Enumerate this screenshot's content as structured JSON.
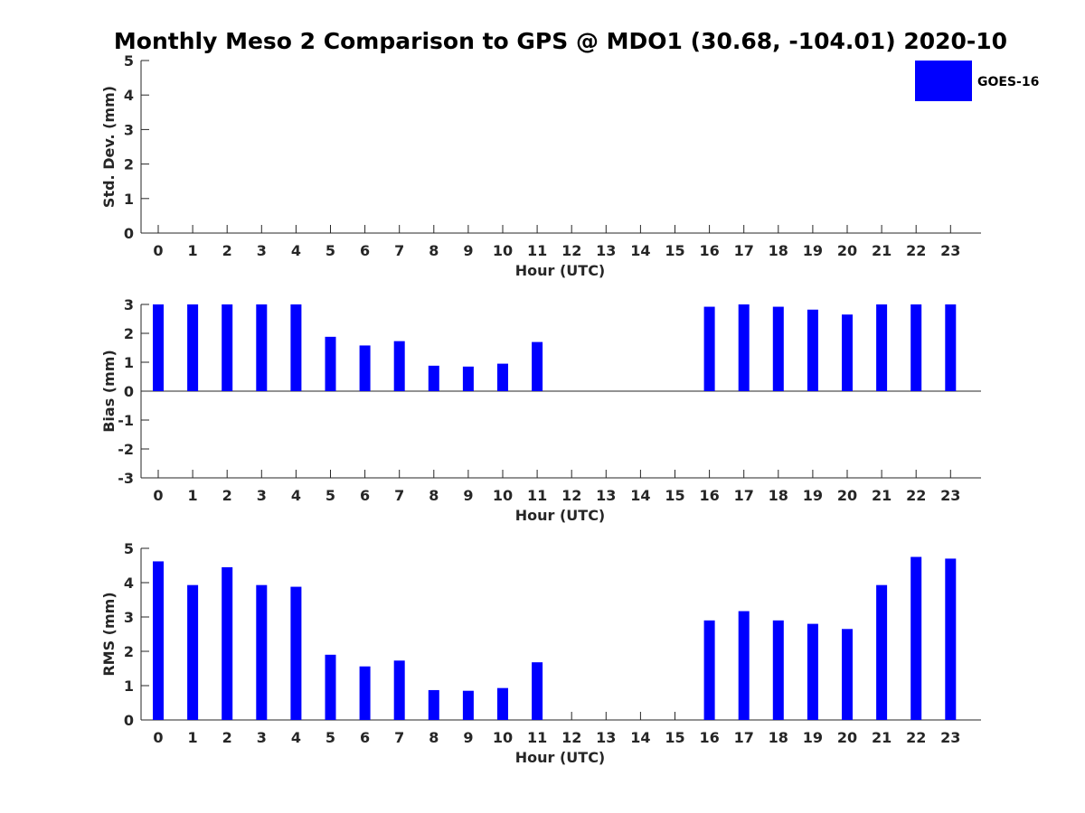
{
  "chart_data": {
    "title": "Monthly Meso 2 Comparison to GPS @ MDO1 (30.68, -104.01) 2020-10",
    "bar_color": "#0000ff",
    "legend": {
      "label": "GOES-16",
      "placement": "top-right"
    },
    "panels": [
      {
        "type": "bar",
        "ylabel": "Std. Dev. (mm)",
        "xlabel": "Hour (UTC)",
        "ylim": [
          0,
          5
        ],
        "yticks": [
          0,
          1,
          2,
          3,
          4,
          5
        ],
        "categories": [
          0,
          1,
          2,
          3,
          4,
          5,
          6,
          7,
          8,
          9,
          10,
          11,
          12,
          13,
          14,
          15,
          16,
          17,
          18,
          19,
          20,
          21,
          22,
          23
        ],
        "series": [
          {
            "name": "GOES-16",
            "values": [
              null,
              null,
              null,
              null,
              null,
              null,
              null,
              null,
              null,
              null,
              null,
              null,
              null,
              null,
              null,
              null,
              null,
              null,
              null,
              null,
              null,
              null,
              null,
              null
            ]
          }
        ]
      },
      {
        "type": "bar",
        "ylabel": "Bias (mm)",
        "xlabel": "Hour (UTC)",
        "ylim": [
          -3,
          3
        ],
        "yticks": [
          -3,
          -2,
          -1,
          0,
          1,
          2,
          3
        ],
        "categories": [
          0,
          1,
          2,
          3,
          4,
          5,
          6,
          7,
          8,
          9,
          10,
          11,
          12,
          13,
          14,
          15,
          16,
          17,
          18,
          19,
          20,
          21,
          22,
          23
        ],
        "series": [
          {
            "name": "GOES-16",
            "values": [
              3.0,
              3.0,
              3.0,
              3.0,
              3.0,
              1.88,
              1.58,
              1.73,
              0.88,
              0.85,
              0.95,
              1.7,
              null,
              null,
              null,
              null,
              2.92,
              3.0,
              2.92,
              2.82,
              2.65,
              3.0,
              3.0,
              3.0
            ]
          }
        ]
      },
      {
        "type": "bar",
        "ylabel": "RMS (mm)",
        "xlabel": "Hour (UTC)",
        "ylim": [
          0,
          5
        ],
        "yticks": [
          0,
          1,
          2,
          3,
          4,
          5
        ],
        "categories": [
          0,
          1,
          2,
          3,
          4,
          5,
          6,
          7,
          8,
          9,
          10,
          11,
          12,
          13,
          14,
          15,
          16,
          17,
          18,
          19,
          20,
          21,
          22,
          23
        ],
        "series": [
          {
            "name": "GOES-16",
            "values": [
              4.62,
              3.93,
              4.45,
              3.93,
              3.88,
              1.9,
              1.56,
              1.73,
              0.87,
              0.85,
              0.93,
              1.68,
              null,
              null,
              null,
              null,
              2.9,
              3.17,
              2.9,
              2.8,
              2.65,
              3.93,
              4.75,
              4.7
            ]
          }
        ]
      }
    ]
  }
}
